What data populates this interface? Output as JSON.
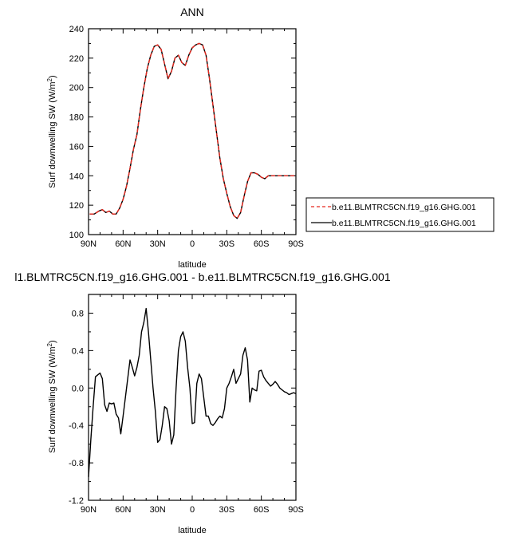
{
  "chart_data": [
    {
      "type": "line",
      "title": "ANN",
      "xlabel": "latitude",
      "ylabel": "Surf downwelling SW (W/m",
      "ylabel_sup": "2",
      "ylabel_end": ")",
      "xlim": [
        90,
        -90
      ],
      "ylim": [
        100,
        240
      ],
      "x_ticks": [
        90,
        60,
        30,
        0,
        -30,
        -60,
        -90
      ],
      "x_tick_labels": [
        "90N",
        "60N",
        "30N",
        "0",
        "30S",
        "60S",
        "90S"
      ],
      "y_ticks": [
        100,
        120,
        140,
        160,
        180,
        200,
        220,
        240
      ],
      "y_tick_labels": [
        "100",
        "120",
        "140",
        "160",
        "180",
        "200",
        "220",
        "240"
      ],
      "legend_position": "right",
      "x": [
        89,
        85,
        81,
        78,
        75,
        72,
        69,
        66,
        63,
        60,
        57,
        54,
        51,
        48,
        45,
        42,
        39,
        36,
        33,
        30,
        27,
        24,
        21,
        18,
        15,
        12,
        9,
        6,
        3,
        0,
        -3,
        -6,
        -9,
        -12,
        -15,
        -18,
        -21,
        -24,
        -27,
        -30,
        -33,
        -36,
        -39,
        -42,
        -45,
        -48,
        -51,
        -54,
        -57,
        -60,
        -63,
        -66,
        -69,
        -72,
        -75,
        -78,
        -81,
        -84,
        -87,
        -89
      ],
      "series": [
        {
          "name": "b.e11.BLMTRC5CN.f19_g16.GHG.001",
          "color": "#e8281e",
          "dash": "dashed",
          "values": [
            114,
            114,
            116,
            117,
            115,
            116,
            114,
            114,
            118,
            124,
            133,
            145,
            158,
            168,
            185,
            200,
            213,
            222,
            228,
            229,
            226,
            216,
            206,
            211,
            220,
            222,
            217,
            215,
            222,
            227,
            229,
            230,
            229,
            222,
            206,
            188,
            170,
            152,
            138,
            128,
            119,
            113,
            111,
            115,
            126,
            136,
            142,
            142,
            141,
            139,
            138,
            140,
            140,
            140,
            140,
            140,
            140,
            140,
            140,
            140
          ]
        },
        {
          "name": "b.e11.BLMTRC5CN.f19_g16.GHG.001",
          "color": "#000000",
          "dash": "solid",
          "values": [
            114,
            114,
            116,
            117,
            115,
            116,
            114,
            114,
            118,
            124,
            133,
            145,
            158,
            168,
            185,
            200,
            213,
            222,
            228,
            229,
            226,
            216,
            206,
            211,
            220,
            222,
            217,
            215,
            222,
            227,
            229,
            230,
            229,
            222,
            206,
            188,
            170,
            152,
            138,
            128,
            119,
            113,
            111,
            115,
            126,
            136,
            142,
            142,
            141,
            139,
            138,
            140,
            140,
            140,
            140,
            140,
            140,
            140,
            140,
            140
          ]
        }
      ]
    },
    {
      "type": "line",
      "title": "l1.BLMTRC5CN.f19_g16.GHG.001 - b.e11.BLMTRC5CN.f19_g16.GHG.001",
      "xlabel": "latitude",
      "ylabel": "Surf downwelling SW (W/m",
      "ylabel_sup": "2",
      "ylabel_end": ")",
      "xlim": [
        90,
        -90
      ],
      "ylim": [
        -1.2,
        1.0
      ],
      "x_ticks": [
        90,
        60,
        30,
        0,
        -30,
        -60,
        -90
      ],
      "x_tick_labels": [
        "90N",
        "60N",
        "30N",
        "0",
        "30S",
        "60S",
        "90S"
      ],
      "y_ticks": [
        -1.2,
        -0.8,
        -0.4,
        0.0,
        0.4,
        0.8
      ],
      "y_tick_labels": [
        "-1.2",
        "-0.8",
        "-0.4",
        "0.0",
        "0.4",
        "0.8"
      ],
      "series": [
        {
          "color": "#000000",
          "dash": "solid",
          "x": [
            90,
            88,
            86,
            84,
            82,
            80,
            78,
            76,
            74,
            72,
            70,
            68,
            66,
            64,
            62,
            60,
            58,
            56,
            54,
            52,
            50,
            48,
            46,
            44,
            42,
            40,
            38,
            36,
            34,
            32,
            30,
            28,
            26,
            24,
            22,
            20,
            18,
            16,
            14,
            12,
            10,
            8,
            6,
            4,
            2,
            0,
            -2,
            -4,
            -6,
            -8,
            -10,
            -12,
            -14,
            -16,
            -18,
            -20,
            -22,
            -24,
            -26,
            -28,
            -30,
            -32,
            -34,
            -36,
            -38,
            -40,
            -42,
            -44,
            -46,
            -48,
            -50,
            -52,
            -54,
            -56,
            -58,
            -60,
            -62,
            -64,
            -66,
            -68,
            -70,
            -72,
            -74,
            -76,
            -78,
            -80,
            -82,
            -84,
            -86,
            -88,
            -90
          ],
          "values": [
            -0.95,
            -0.55,
            -0.2,
            0.12,
            0.14,
            0.16,
            0.1,
            -0.18,
            -0.25,
            -0.16,
            -0.17,
            -0.16,
            -0.28,
            -0.32,
            -0.49,
            -0.3,
            -0.1,
            0.1,
            0.3,
            0.22,
            0.13,
            0.22,
            0.35,
            0.6,
            0.7,
            0.85,
            0.6,
            0.3,
            0.0,
            -0.25,
            -0.58,
            -0.55,
            -0.4,
            -0.2,
            -0.22,
            -0.35,
            -0.6,
            -0.5,
            0.0,
            0.4,
            0.55,
            0.6,
            0.5,
            0.22,
            0.0,
            -0.38,
            -0.37,
            0.05,
            0.15,
            0.1,
            -0.1,
            -0.3,
            -0.3,
            -0.38,
            -0.4,
            -0.37,
            -0.33,
            -0.3,
            -0.32,
            -0.22,
            0.0,
            0.05,
            0.12,
            0.2,
            0.05,
            0.1,
            0.15,
            0.35,
            0.43,
            0.3,
            -0.15,
            0.0,
            -0.02,
            -0.03,
            0.18,
            0.19,
            0.12,
            0.08,
            0.05,
            0.02,
            0.04,
            0.07,
            0.04,
            0.0,
            -0.02,
            -0.04,
            -0.05,
            -0.07,
            -0.06,
            -0.05,
            -0.06
          ]
        }
      ]
    }
  ]
}
